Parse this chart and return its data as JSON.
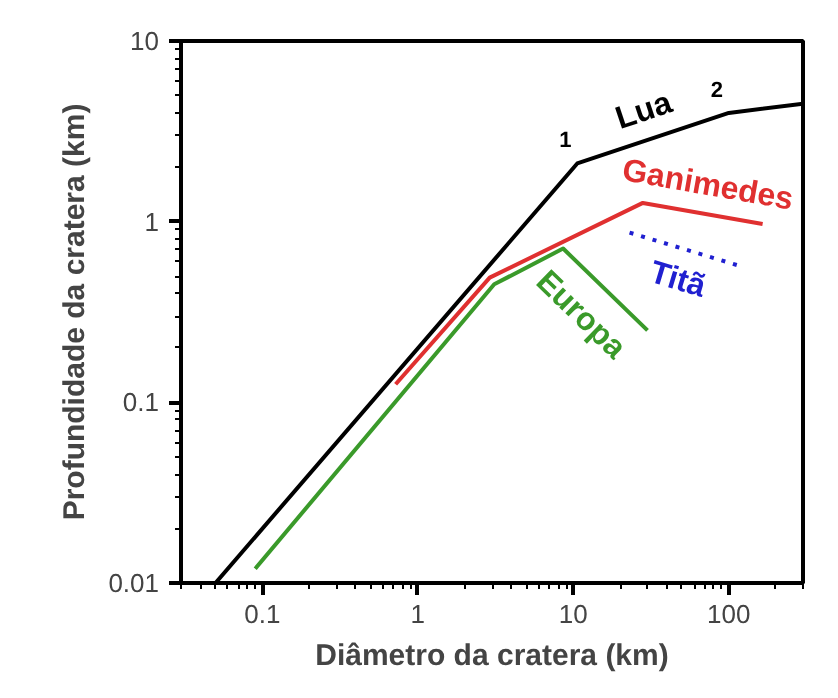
{
  "chart_data": {
    "type": "line",
    "xlabel": "Diâmetro da cratera (km)",
    "ylabel": "Profundidade da cratera (km)",
    "log": "xy",
    "xlim": [
      0.03,
      300
    ],
    "ylim": [
      0.01,
      10
    ],
    "xticks": [
      0.1,
      1,
      10,
      100
    ],
    "yticks": [
      0.01,
      0.1,
      1,
      10
    ],
    "grid": false,
    "legend": false,
    "marker": "none",
    "series": [
      {
        "name": "Lua",
        "color": "#000000",
        "x": [
          0.05,
          10.6,
          100,
          300
        ],
        "values": [
          0.01,
          2.1,
          4.0,
          4.5
        ]
      },
      {
        "name": "Ganimedes",
        "color": "#e03030",
        "x": [
          0.72,
          2.9,
          28,
          165
        ],
        "values": [
          0.126,
          0.49,
          1.27,
          0.97
        ]
      },
      {
        "name": "Titã",
        "color": "#2020d0",
        "line_style": "dotted",
        "x": [
          23,
          125
        ],
        "values": [
          0.87,
          0.56
        ]
      },
      {
        "name": "Europa",
        "color": "#3a9a2a",
        "x": [
          0.09,
          3.1,
          8.6,
          30
        ],
        "values": [
          0.012,
          0.45,
          0.71,
          0.25
        ]
      }
    ],
    "annotations": [
      {
        "text": "1",
        "x": 10.6,
        "y": 2.1
      },
      {
        "text": "2",
        "x": 100,
        "y": 4.0
      }
    ]
  }
}
